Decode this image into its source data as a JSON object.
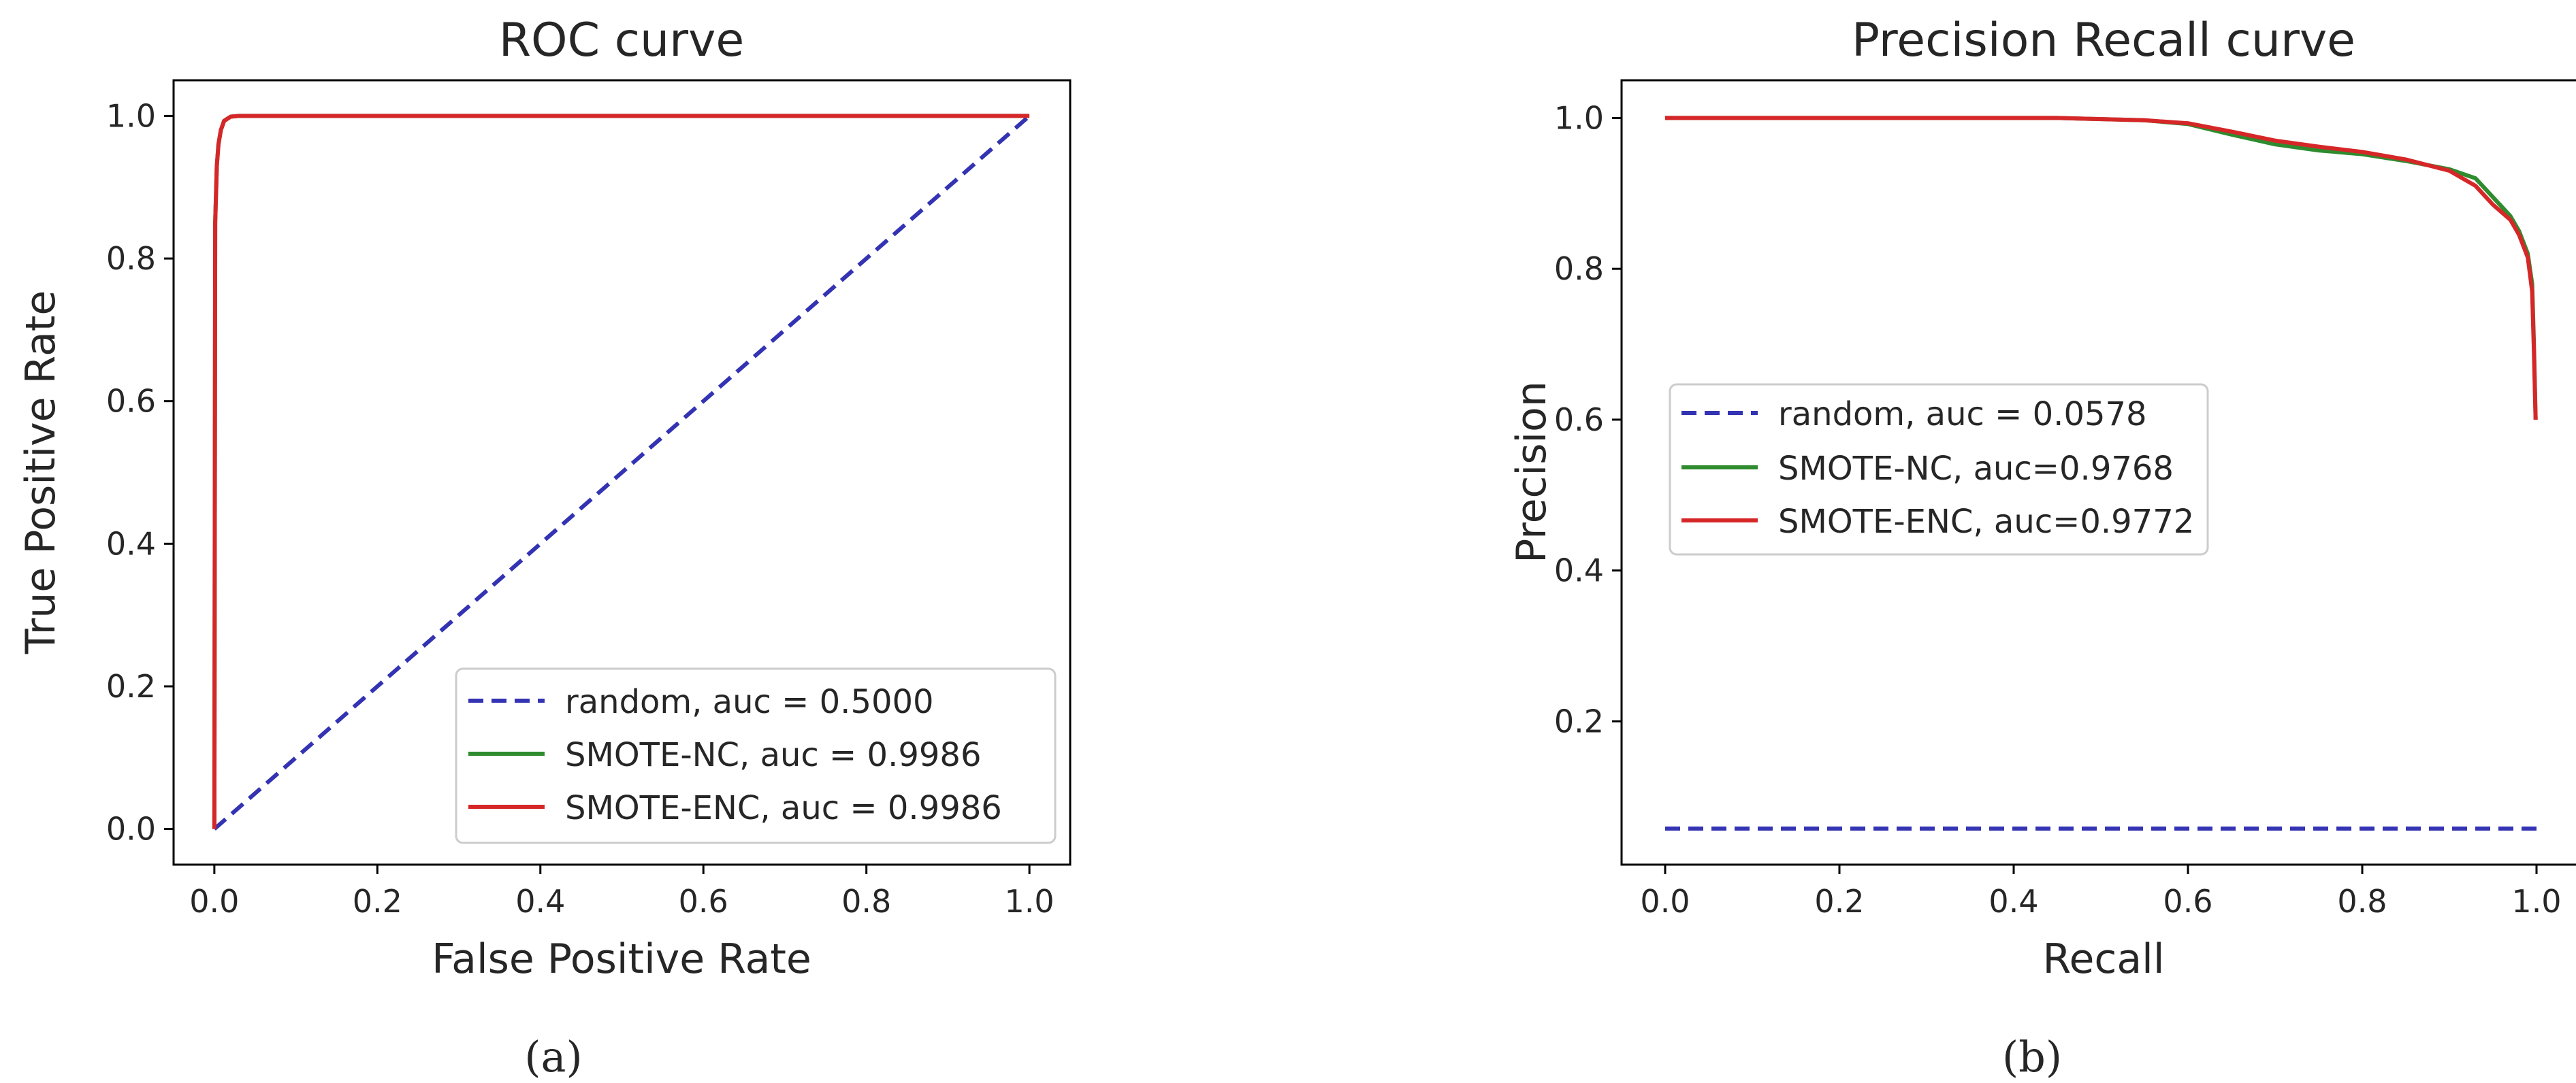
{
  "figure": {
    "captions": [
      "(a)",
      "(b)"
    ]
  },
  "chart_data": [
    {
      "type": "line",
      "title": "ROC curve",
      "xlabel": "False Positive Rate",
      "ylabel": "True Positive Rate",
      "xlim": [
        -0.05,
        1.05
      ],
      "ylim": [
        -0.05,
        1.05
      ],
      "xticks": [
        0.0,
        0.2,
        0.4,
        0.6,
        0.8,
        1.0
      ],
      "yticks": [
        0.0,
        0.2,
        0.4,
        0.6,
        0.8,
        1.0
      ],
      "tick_labels_x": [
        "0.0",
        "0.2",
        "0.4",
        "0.6",
        "0.8",
        "1.0"
      ],
      "tick_labels_y": [
        "0.0",
        "0.2",
        "0.4",
        "0.6",
        "0.8",
        "1.0"
      ],
      "legend_position": "lower-right",
      "series": [
        {
          "name": "random, auc = 0.5000",
          "color": "#3333b3",
          "style": "dashed",
          "x": [
            0.0,
            1.0
          ],
          "y": [
            0.0,
            1.0
          ]
        },
        {
          "name": "SMOTE-NC, auc = 0.9986",
          "color": "#2e8b2e",
          "style": "solid",
          "x": [
            0.0,
            0.001,
            0.003,
            0.005,
            0.008,
            0.012,
            0.02,
            0.03,
            1.0
          ],
          "y": [
            0.0,
            0.85,
            0.93,
            0.96,
            0.98,
            0.993,
            0.999,
            1.0,
            1.0
          ]
        },
        {
          "name": "SMOTE-ENC, auc = 0.9986",
          "color": "#d62728",
          "style": "solid",
          "x": [
            0.0,
            0.001,
            0.003,
            0.005,
            0.008,
            0.012,
            0.02,
            0.03,
            1.0
          ],
          "y": [
            0.0,
            0.85,
            0.93,
            0.96,
            0.98,
            0.993,
            0.999,
            1.0,
            1.0
          ]
        }
      ]
    },
    {
      "type": "line",
      "title": "Precision Recall curve",
      "xlabel": "Recall",
      "ylabel": "Precision",
      "xlim": [
        -0.05,
        1.05
      ],
      "ylim": [
        0.01,
        1.05
      ],
      "xticks": [
        0.0,
        0.2,
        0.4,
        0.6,
        0.8,
        1.0
      ],
      "yticks": [
        0.2,
        0.4,
        0.6,
        0.8,
        1.0
      ],
      "tick_labels_x": [
        "0.0",
        "0.2",
        "0.4",
        "0.6",
        "0.8",
        "1.0"
      ],
      "tick_labels_y": [
        "0.2",
        "0.4",
        "0.6",
        "0.8",
        "1.0"
      ],
      "legend_position": "center-left",
      "series": [
        {
          "name": "random, auc = 0.0578",
          "color": "#3333b3",
          "style": "dashed",
          "x": [
            0.0,
            1.0
          ],
          "y": [
            0.0578,
            0.0578
          ]
        },
        {
          "name": "SMOTE-NC, auc=0.9768",
          "color": "#2e8b2e",
          "style": "solid",
          "x": [
            0.0,
            0.3,
            0.45,
            0.55,
            0.6,
            0.65,
            0.7,
            0.75,
            0.8,
            0.85,
            0.9,
            0.93,
            0.95,
            0.97,
            0.98,
            0.99,
            0.995,
            0.997,
            0.999
          ],
          "y": [
            1.0,
            1.0,
            1.0,
            0.997,
            0.992,
            0.978,
            0.965,
            0.957,
            0.952,
            0.943,
            0.932,
            0.92,
            0.895,
            0.87,
            0.85,
            0.82,
            0.78,
            0.7,
            0.6
          ]
        },
        {
          "name": "SMOTE-ENC, auc=0.9772",
          "color": "#d62728",
          "style": "solid",
          "x": [
            0.0,
            0.3,
            0.45,
            0.55,
            0.6,
            0.65,
            0.7,
            0.75,
            0.8,
            0.85,
            0.9,
            0.93,
            0.95,
            0.97,
            0.98,
            0.99,
            0.995,
            0.997,
            0.999
          ],
          "y": [
            1.0,
            1.0,
            1.0,
            0.997,
            0.993,
            0.982,
            0.97,
            0.962,
            0.955,
            0.945,
            0.93,
            0.91,
            0.885,
            0.865,
            0.845,
            0.815,
            0.77,
            0.69,
            0.6
          ]
        }
      ]
    }
  ]
}
